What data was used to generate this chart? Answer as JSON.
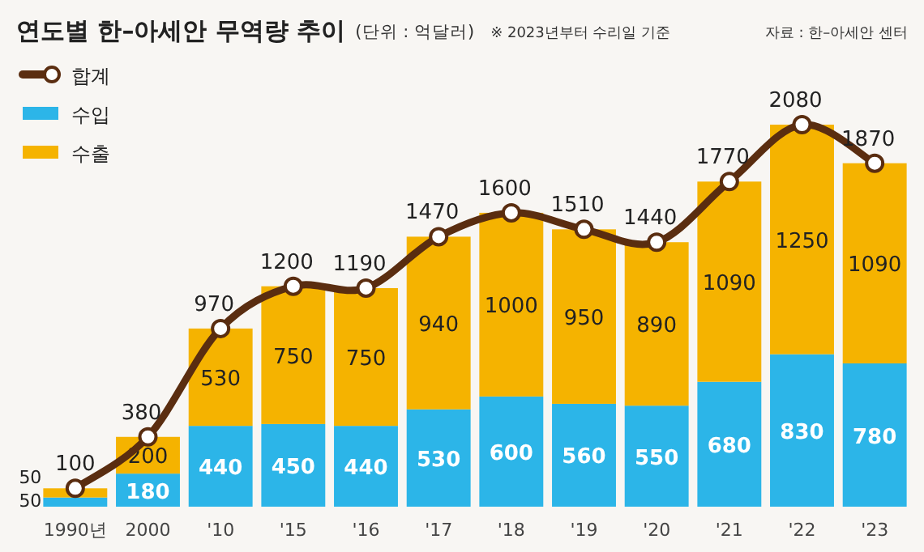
{
  "chart_data": {
    "type": "bar",
    "title": "연도별 한–아세안 무역량 추이",
    "subtitle": "(단위 : 억달러)",
    "annotations": [
      "※ 2023년부터 수리일 기준",
      "자료 : 한–아세안 센터"
    ],
    "categories": [
      "1990년",
      "2000",
      "'10",
      "'15",
      "'16",
      "'17",
      "'18",
      "'19",
      "'20",
      "'21",
      "'22",
      "'23"
    ],
    "stacked": true,
    "data_labels": true,
    "legend": "top left",
    "marker": "circle",
    "line_style": "solid",
    "series": [
      {
        "name": "합계",
        "type": "line",
        "color": "#5a2d10",
        "values": [
          100,
          380,
          970,
          1200,
          1190,
          1470,
          1600,
          1510,
          1440,
          1770,
          2080,
          1870
        ]
      },
      {
        "name": "수입",
        "color": "#2cb5e8",
        "values": [
          50,
          180,
          440,
          450,
          440,
          530,
          600,
          560,
          550,
          680,
          830,
          780
        ]
      },
      {
        "name": "수출",
        "color": "#f5b300",
        "values": [
          50,
          200,
          530,
          750,
          750,
          940,
          1000,
          950,
          890,
          1090,
          1250,
          1090
        ]
      }
    ]
  }
}
